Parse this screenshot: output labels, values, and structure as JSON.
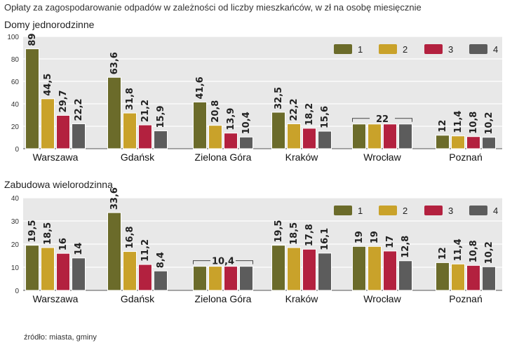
{
  "title": "Opłaty za zagospodarowanie odpadów w zależności od liczby mieszkańców, w zł na osobę miesięcznie",
  "source": "źródło: miasta, gminy",
  "colors": {
    "panel_bg": "#e8e8e8",
    "grid": "#ffffff",
    "axis": "#555555",
    "s1": "#6b6b2a",
    "s2": "#c9a22a",
    "s3": "#b3213f",
    "s4": "#5c5c5c"
  },
  "chart_data": [
    {
      "type": "bar",
      "title": "Domy jednorodzinne",
      "ylim": [
        0,
        100
      ],
      "yticks": [
        0,
        20,
        40,
        60,
        80,
        100
      ],
      "legend_position": "top-right",
      "categories": [
        "Warszawa",
        "Gdańsk",
        "Zielona Góra",
        "Kraków",
        "Wrocław",
        "Poznań"
      ],
      "series": [
        {
          "name": "1",
          "values": [
            89,
            63.6,
            41.6,
            32.5,
            22,
            12
          ]
        },
        {
          "name": "2",
          "values": [
            44.5,
            31.8,
            20.8,
            22.2,
            22,
            11.4
          ]
        },
        {
          "name": "3",
          "values": [
            29.7,
            21.2,
            13.9,
            18.2,
            22,
            10.8
          ]
        },
        {
          "name": "4",
          "values": [
            22.2,
            15.9,
            10.4,
            15.6,
            22,
            10.2
          ]
        }
      ],
      "labels": [
        [
          "89",
          "44,5",
          "29,7",
          "22,2"
        ],
        [
          "63,6",
          "31,8",
          "21,2",
          "15,9"
        ],
        [
          "41,6",
          "20,8",
          "13,9",
          "10,4"
        ],
        [
          "32,5",
          "22,2",
          "18,2",
          "15,6"
        ],
        [
          "22"
        ],
        [
          "12",
          "11,4",
          "10,8",
          "10,2"
        ]
      ]
    },
    {
      "type": "bar",
      "title": "Zabudowa wielorodzinna",
      "ylim": [
        0,
        40
      ],
      "yticks": [
        0,
        10,
        20,
        30,
        40
      ],
      "legend_position": "top-right",
      "categories": [
        "Warszawa",
        "Gdańsk",
        "Zielona Góra",
        "Kraków",
        "Wrocław",
        "Poznań"
      ],
      "series": [
        {
          "name": "1",
          "values": [
            19.5,
            33.6,
            10.4,
            19.5,
            19,
            12
          ]
        },
        {
          "name": "2",
          "values": [
            18.5,
            16.8,
            10.4,
            18.5,
            19,
            11.4
          ]
        },
        {
          "name": "3",
          "values": [
            16,
            11.2,
            10.4,
            17.8,
            17,
            10.8
          ]
        },
        {
          "name": "4",
          "values": [
            14,
            8.4,
            10.4,
            16.1,
            12.8,
            10.2
          ]
        }
      ],
      "labels": [
        [
          "19,5",
          "18,5",
          "16",
          "14"
        ],
        [
          "33,6",
          "16,8",
          "11,2",
          "8,4"
        ],
        [
          "10,4"
        ],
        [
          "19,5",
          "18,5",
          "17,8",
          "16,1"
        ],
        [
          "19",
          "19",
          "17",
          "12,8"
        ],
        [
          "12",
          "11,4",
          "10,8",
          "10,2"
        ]
      ]
    }
  ]
}
